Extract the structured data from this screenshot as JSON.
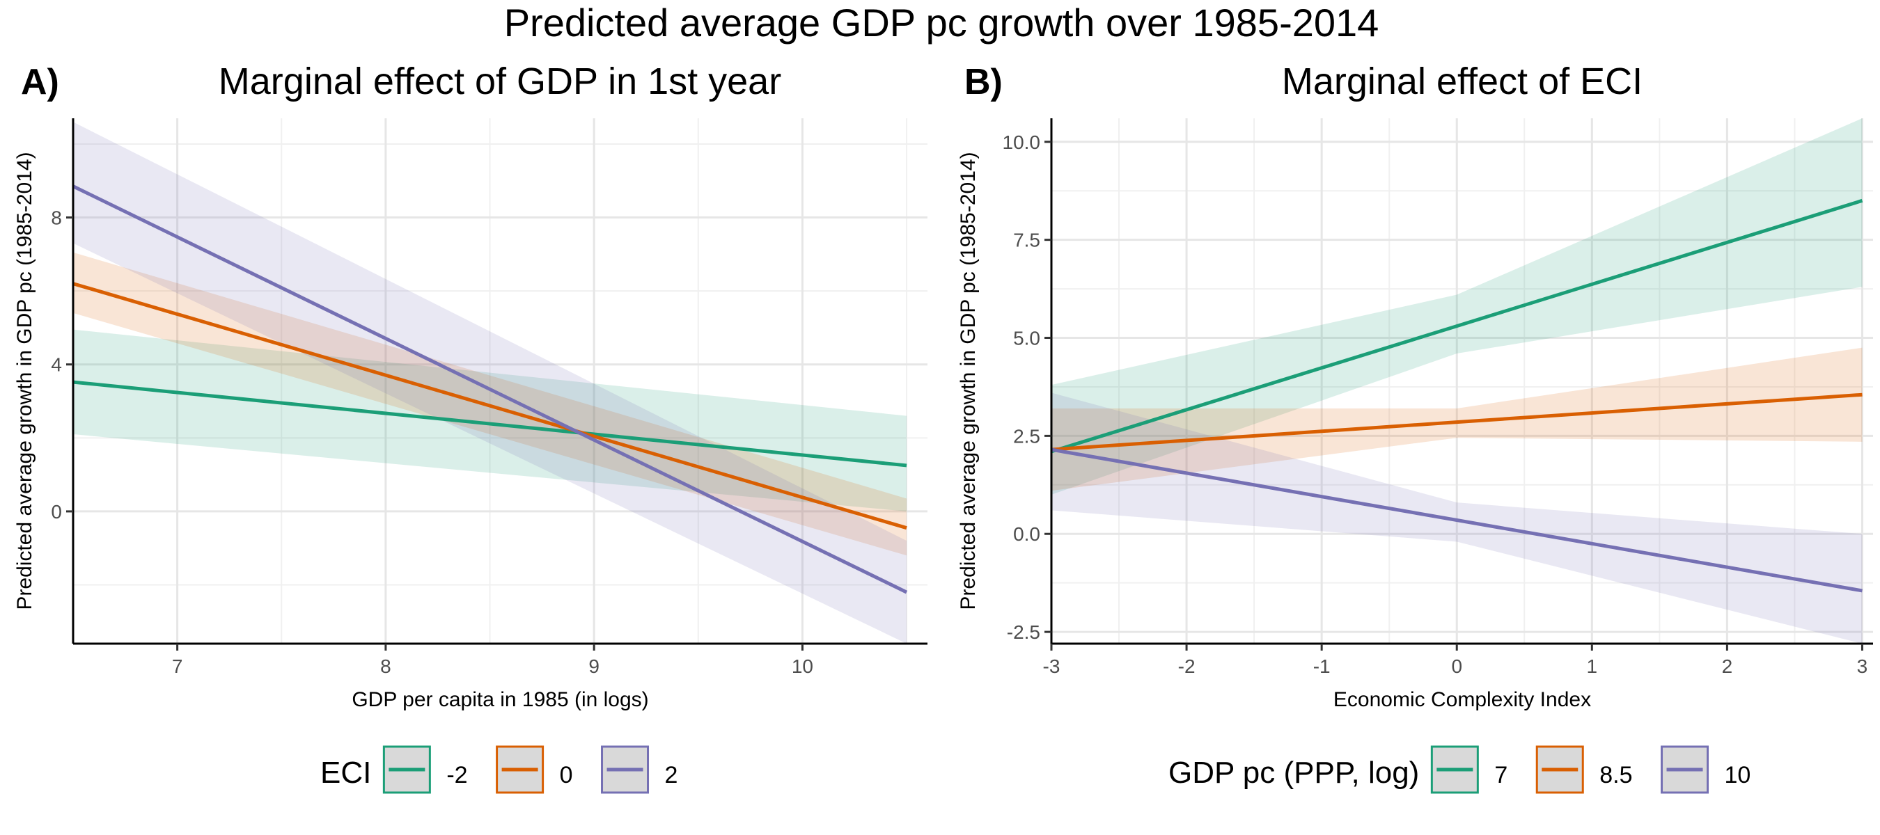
{
  "figure": {
    "title": "Predicted average GDP pc growth over 1985-2014"
  },
  "colors": {
    "green": "#1b9e77",
    "orange": "#d95f02",
    "purple": "#7570b3",
    "axis": "#000000",
    "grid": "#e6e6e6"
  },
  "chart_data": [
    {
      "type": "line",
      "panel_letter": "A)",
      "title": "Marginal effect of GDP in 1st year",
      "xlabel": "GDP per capita in 1985 (in logs)",
      "ylabel": "Predicted average growth in GDP pc (1985-2014)",
      "xlim": [
        6.5,
        10.6
      ],
      "ylim": [
        -3.6,
        10.7
      ],
      "x_major_ticks": [
        7,
        8,
        9,
        10
      ],
      "x_tick_labels": [
        "7",
        "8",
        "9",
        "10"
      ],
      "y_major_ticks": [
        0,
        4,
        8
      ],
      "y_tick_labels": [
        "0",
        "4",
        "8"
      ],
      "x_minor_ticks": [
        6.5,
        7.5,
        8.5,
        9.5,
        10.5
      ],
      "y_minor_ticks": [
        -2,
        2,
        6,
        10
      ],
      "grid": true,
      "legend": {
        "title": "ECI",
        "position": "bottom",
        "entries": [
          "-2",
          "0",
          "2"
        ]
      },
      "series": [
        {
          "name": "-2",
          "color": "green",
          "x": [
            6.5,
            10.5
          ],
          "y": [
            3.52,
            1.25
          ],
          "lower": [
            2.1,
            0.0
          ],
          "upper": [
            4.95,
            2.6
          ]
        },
        {
          "name": "0",
          "color": "orange",
          "x": [
            6.5,
            10.5
          ],
          "y": [
            6.2,
            -0.45
          ],
          "lower": [
            5.4,
            -1.2
          ],
          "upper": [
            7.05,
            0.35
          ]
        },
        {
          "name": "2",
          "color": "purple",
          "x": [
            6.5,
            10.5
          ],
          "y": [
            8.85,
            -2.2
          ],
          "lower": [
            7.3,
            -3.6
          ],
          "upper": [
            10.6,
            -0.8
          ]
        }
      ]
    },
    {
      "type": "line",
      "panel_letter": "B)",
      "title": "Marginal effect of ECI",
      "xlabel": "Economic Complexity Index",
      "ylabel": "Predicted average growth in GDP pc (1985-2014)",
      "xlim": [
        -3,
        3.08
      ],
      "ylim": [
        -2.8,
        10.6
      ],
      "x_major_ticks": [
        -3,
        -2,
        -1,
        0,
        1,
        2,
        3
      ],
      "x_tick_labels": [
        "-3",
        "-2",
        "-1",
        "0",
        "1",
        "2",
        "3"
      ],
      "y_major_ticks": [
        -2.5,
        0,
        2.5,
        5,
        7.5,
        10
      ],
      "y_tick_labels": [
        "-2.5",
        "0.0",
        "2.5",
        "5.0",
        "7.5",
        "10.0"
      ],
      "x_minor_ticks": [
        -2.5,
        -1.5,
        -0.5,
        0.5,
        1.5,
        2.5
      ],
      "y_minor_ticks": [
        -1.25,
        1.25,
        3.75,
        6.25,
        8.75
      ],
      "grid": true,
      "legend": {
        "title": "GDP pc (PPP, log)",
        "position": "bottom",
        "entries": [
          "7",
          "8.5",
          "10"
        ]
      },
      "series": [
        {
          "name": "7",
          "color": "green",
          "x": [
            -3,
            0,
            3
          ],
          "y": [
            2.1,
            5.3,
            8.5
          ],
          "lower": [
            1.0,
            4.6,
            6.3
          ],
          "upper": [
            3.8,
            6.1,
            10.6
          ]
        },
        {
          "name": "8.5",
          "color": "orange",
          "x": [
            -3,
            0,
            3
          ],
          "y": [
            2.15,
            2.85,
            3.55
          ],
          "lower": [
            1.1,
            2.45,
            2.35
          ],
          "upper": [
            3.2,
            3.2,
            4.75
          ]
        },
        {
          "name": "10",
          "color": "purple",
          "x": [
            -3,
            0,
            3
          ],
          "y": [
            2.15,
            0.35,
            -1.45
          ],
          "lower": [
            0.6,
            -0.2,
            -2.8
          ],
          "upper": [
            3.6,
            0.8,
            0.0
          ]
        }
      ]
    }
  ]
}
